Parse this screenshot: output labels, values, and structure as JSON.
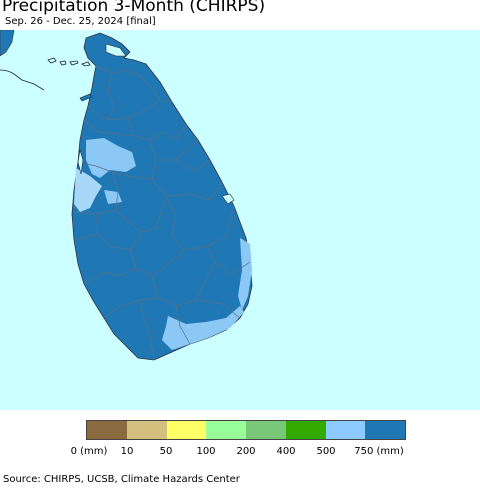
{
  "header": {
    "title": "Precipitation 3-Month (CHIRPS)",
    "subtitle": "Sep. 26 - Dec. 25, 2024 [final]"
  },
  "map": {
    "region": "Sri Lanka",
    "colors": {
      "ocean": "#ccffff",
      "land_main": "#1f78b4",
      "land_light": "#8cc8f5",
      "land_pale": "#a8d8f8",
      "border": "#556677"
    }
  },
  "legend": {
    "colors": [
      "#8b6a40",
      "#d3c07f",
      "#ffff66",
      "#99ff99",
      "#79c879",
      "#33aa00",
      "#8ccaff",
      "#1f78b4"
    ],
    "labels": [
      "0 (mm)",
      "10",
      "50",
      "100",
      "200",
      "400",
      "500",
      "750 (mm)"
    ]
  },
  "footer": {
    "source": "Source: CHIRPS, UCSB, Climate Hazards Center"
  }
}
